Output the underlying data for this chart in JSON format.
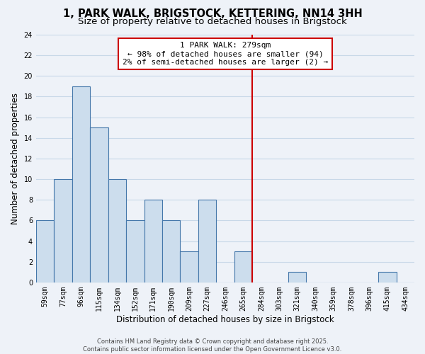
{
  "title_line1": "1, PARK WALK, BRIGSTOCK, KETTERING, NN14 3HH",
  "title_line2": "Size of property relative to detached houses in Brigstock",
  "xlabel": "Distribution of detached houses by size in Brigstock",
  "ylabel": "Number of detached properties",
  "categories": [
    "59sqm",
    "77sqm",
    "96sqm",
    "115sqm",
    "134sqm",
    "152sqm",
    "171sqm",
    "190sqm",
    "209sqm",
    "227sqm",
    "246sqm",
    "265sqm",
    "284sqm",
    "303sqm",
    "321sqm",
    "340sqm",
    "359sqm",
    "378sqm",
    "396sqm",
    "415sqm",
    "434sqm"
  ],
  "values": [
    6,
    10,
    19,
    15,
    10,
    6,
    8,
    6,
    3,
    8,
    0,
    3,
    0,
    0,
    1,
    0,
    0,
    0,
    0,
    1,
    0
  ],
  "bar_color": "#ccdded",
  "bar_edge_color": "#4477aa",
  "vline_color": "#cc0000",
  "vline_pos": 11.5,
  "annotation_text_line1": "1 PARK WALK: 279sqm",
  "annotation_text_line2": "← 98% of detached houses are smaller (94)",
  "annotation_text_line3": "2% of semi-detached houses are larger (2) →",
  "ylim": [
    0,
    24
  ],
  "yticks": [
    0,
    2,
    4,
    6,
    8,
    10,
    12,
    14,
    16,
    18,
    20,
    22,
    24
  ],
  "grid_color": "#c8d8e8",
  "bg_color": "#eef2f8",
  "footer_text": "Contains HM Land Registry data © Crown copyright and database right 2025.\nContains public sector information licensed under the Open Government Licence v3.0.",
  "title_fontsize": 10.5,
  "subtitle_fontsize": 9.5,
  "axis_label_fontsize": 8.5,
  "tick_fontsize": 7,
  "annotation_fontsize": 8,
  "footer_fontsize": 6
}
